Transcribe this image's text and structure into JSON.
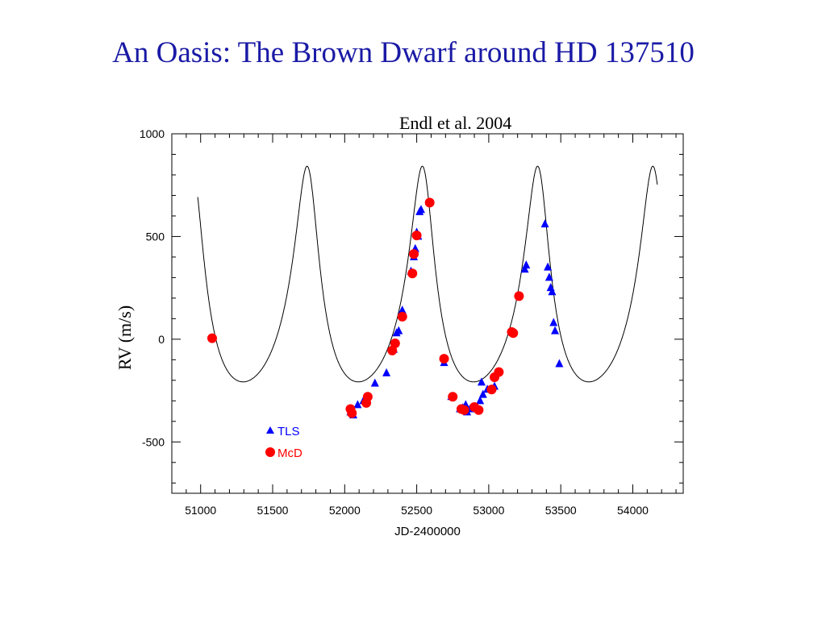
{
  "slide": {
    "title": "An Oasis: The Brown Dwarf around HD 137510",
    "citation": "Endl et al. 2004"
  },
  "chart_data": {
    "type": "scatter",
    "xlabel": "JD-2400000",
    "ylabel": "RV (m/s)",
    "xlim": [
      50800,
      54350
    ],
    "ylim": [
      -750,
      1000
    ],
    "x_ticks": [
      51000,
      51500,
      52000,
      52500,
      53000,
      53500,
      54000
    ],
    "y_ticks": [
      1000,
      500,
      0,
      -500
    ],
    "grid": false,
    "legend_position": "bottom-left",
    "series": [
      {
        "name": "TLS",
        "marker": "triangle",
        "color": "#0000ff",
        "points": [
          [
            52040,
            -355
          ],
          [
            52060,
            -370
          ],
          [
            52090,
            -320
          ],
          [
            52130,
            -300
          ],
          [
            52210,
            -215
          ],
          [
            52290,
            -165
          ],
          [
            52340,
            -50
          ],
          [
            52360,
            30
          ],
          [
            52375,
            40
          ],
          [
            52400,
            140
          ],
          [
            52460,
            330
          ],
          [
            52480,
            400
          ],
          [
            52490,
            440
          ],
          [
            52500,
            520
          ],
          [
            52510,
            500
          ],
          [
            52520,
            620
          ],
          [
            52530,
            630
          ],
          [
            52690,
            -115
          ],
          [
            52740,
            -280
          ],
          [
            52800,
            -340
          ],
          [
            52820,
            -335
          ],
          [
            52840,
            -320
          ],
          [
            52850,
            -355
          ],
          [
            52870,
            -340
          ],
          [
            52920,
            -340
          ],
          [
            52940,
            -300
          ],
          [
            52950,
            -210
          ],
          [
            52960,
            -270
          ],
          [
            52990,
            -245
          ],
          [
            53040,
            -230
          ],
          [
            53250,
            340
          ],
          [
            53260,
            360
          ],
          [
            53390,
            560
          ],
          [
            53410,
            350
          ],
          [
            53420,
            300
          ],
          [
            53430,
            250
          ],
          [
            53440,
            230
          ],
          [
            53450,
            80
          ],
          [
            53460,
            40
          ],
          [
            53490,
            -120
          ]
        ]
      },
      {
        "name": "McD",
        "marker": "circle",
        "color": "#ff0000",
        "points": [
          [
            51080,
            5
          ],
          [
            52040,
            -340
          ],
          [
            52050,
            -360
          ],
          [
            52150,
            -310
          ],
          [
            52160,
            -280
          ],
          [
            52330,
            -55
          ],
          [
            52350,
            -20
          ],
          [
            52400,
            110
          ],
          [
            52470,
            320
          ],
          [
            52480,
            415
          ],
          [
            52500,
            505
          ],
          [
            52590,
            665
          ],
          [
            52690,
            -95
          ],
          [
            52750,
            -280
          ],
          [
            52810,
            -340
          ],
          [
            52830,
            -345
          ],
          [
            52900,
            -330
          ],
          [
            52930,
            -345
          ],
          [
            53020,
            -245
          ],
          [
            53040,
            -185
          ],
          [
            53070,
            -160
          ],
          [
            53160,
            35
          ],
          [
            53170,
            30
          ],
          [
            53210,
            210
          ]
        ]
      }
    ],
    "model_curve": {
      "period_days": 800,
      "periastron_jd": 52550,
      "amplitude_ms": 525,
      "eccentricity": 0.39,
      "omega_deg": 12,
      "offset_ms": 117,
      "x_range": [
        50980,
        54170
      ]
    }
  }
}
